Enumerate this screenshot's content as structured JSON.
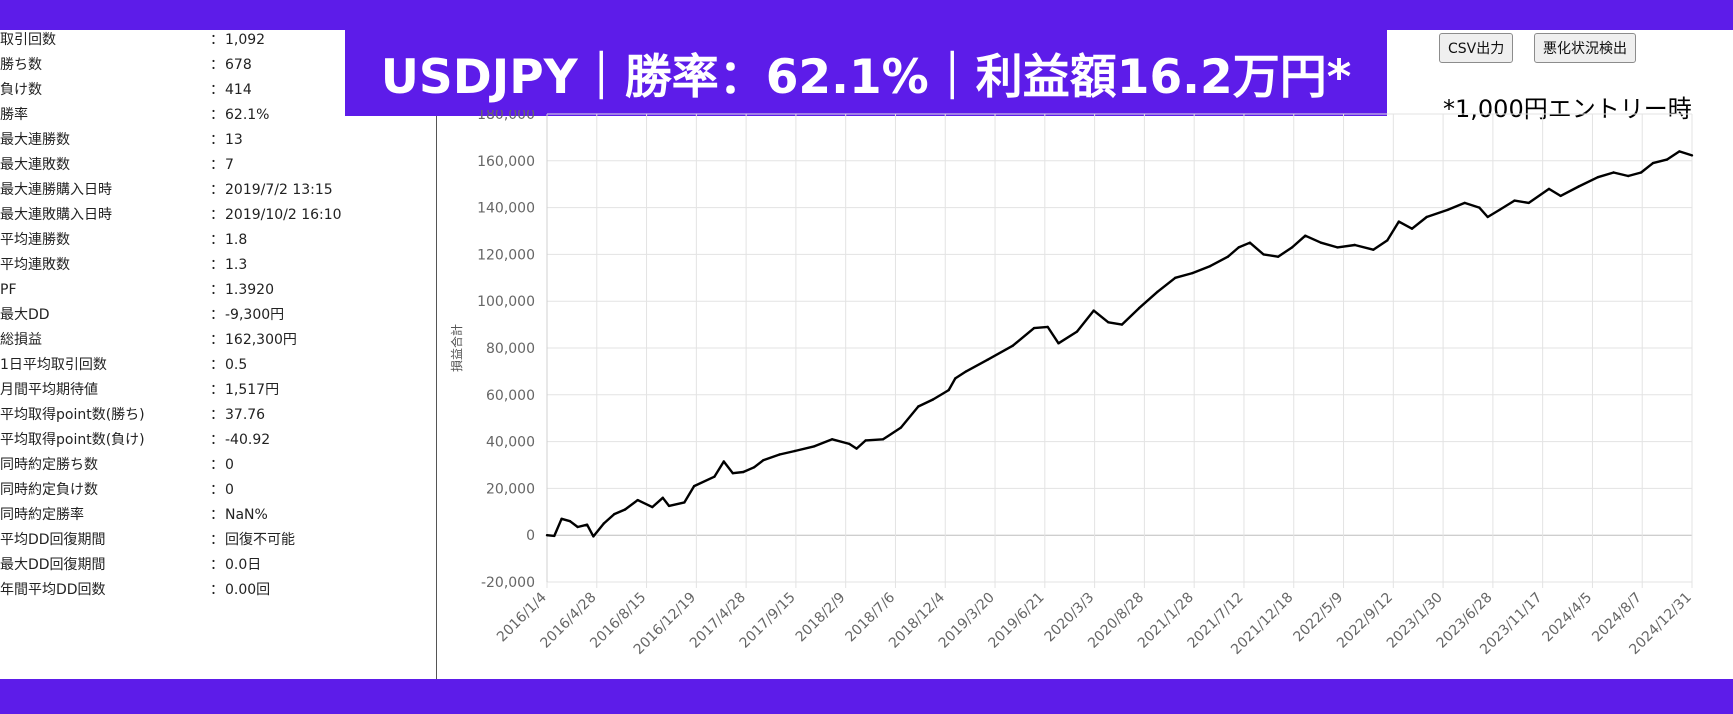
{
  "banner": {
    "title": "USDJPY｜勝率：62.1%｜利益額16.2万円*"
  },
  "note": "*1,000円エントリー時",
  "buttons": {
    "csv": "CSV出力",
    "deterioration": "悪化状況検出"
  },
  "stats": [
    {
      "label": "取引回数",
      "value": "1,092"
    },
    {
      "label": "勝ち数",
      "value": "678"
    },
    {
      "label": "負け数",
      "value": "414"
    },
    {
      "label": "勝率",
      "value": "62.1%"
    },
    {
      "label": "最大連勝数",
      "value": "13"
    },
    {
      "label": "最大連敗数",
      "value": "7"
    },
    {
      "label": "最大連勝購入日時",
      "value": "2019/7/2 13:15"
    },
    {
      "label": "最大連敗購入日時",
      "value": "2019/10/2 16:10"
    },
    {
      "label": "平均連勝数",
      "value": "1.8"
    },
    {
      "label": "平均連敗数",
      "value": "1.3"
    },
    {
      "label": "PF",
      "value": "1.3920"
    },
    {
      "label": "最大DD",
      "value": "-9,300円"
    },
    {
      "label": "総損益",
      "value": "162,300円"
    },
    {
      "label": "1日平均取引回数",
      "value": "0.5"
    },
    {
      "label": "月間平均期待値",
      "value": "1,517円"
    },
    {
      "label": "平均取得point数(勝ち)",
      "value": "37.76"
    },
    {
      "label": "平均取得point数(負け)",
      "value": "-40.92"
    },
    {
      "label": "同時約定勝ち数",
      "value": "0"
    },
    {
      "label": "同時約定負け数",
      "value": "0"
    },
    {
      "label": "同時約定勝率",
      "value": "NaN%"
    },
    {
      "label": "平均DD回復期間",
      "value": "回復不可能"
    },
    {
      "label": "最大DD回復期間",
      "value": "0.0日"
    },
    {
      "label": "年間平均DD回数",
      "value": "0.00回"
    }
  ],
  "colors": {
    "banner": "#5d1ce9",
    "line": "#000000",
    "grid": "#e3e3e3"
  },
  "chart_data": {
    "type": "line",
    "ylabel": "損益合計",
    "xlabel": "",
    "ylim": [
      -20000,
      180000
    ],
    "yticks": [
      -20000,
      0,
      20000,
      40000,
      60000,
      80000,
      100000,
      120000,
      140000,
      160000,
      180000
    ],
    "ytick_labels": [
      "-20,000",
      "0",
      "20,000",
      "40,000",
      "60,000",
      "80,000",
      "100,000",
      "120,000",
      "140,000",
      "160,000",
      "180,000"
    ],
    "x_range": [
      "2016/1/4",
      "2024/12/31"
    ],
    "xtick_labels": [
      "2016/1/4",
      "2016/4/28",
      "2016/8/15",
      "2016/12/19",
      "2017/4/28",
      "2017/9/15",
      "2018/2/9",
      "2018/7/6",
      "2018/12/4",
      "2019/3/20",
      "2019/6/21",
      "2020/3/3",
      "2020/8/28",
      "2021/1/28",
      "2021/7/12",
      "2021/12/18",
      "2022/5/9",
      "2022/9/12",
      "2023/1/30",
      "2023/6/28",
      "2023/11/17",
      "2024/4/5",
      "2024/8/7",
      "2024/12/31"
    ],
    "grid": true,
    "series": [
      {
        "values": [
          {
            "x": "2016/1/4",
            "y": 0
          },
          {
            "x": "2016/1/25",
            "y": -300
          },
          {
            "x": "2016/2/15",
            "y": 7000
          },
          {
            "x": "2016/3/10",
            "y": 6000
          },
          {
            "x": "2016/4/1",
            "y": 3500
          },
          {
            "x": "2016/4/28",
            "y": 4500
          },
          {
            "x": "2016/5/16",
            "y": -500
          },
          {
            "x": "2016/6/15",
            "y": 5000
          },
          {
            "x": "2016/7/15",
            "y": 9000
          },
          {
            "x": "2016/8/15",
            "y": 11000
          },
          {
            "x": "2016/9/20",
            "y": 15000
          },
          {
            "x": "2016/11/1",
            "y": 12000
          },
          {
            "x": "2016/12/1",
            "y": 16000
          },
          {
            "x": "2016/12/19",
            "y": 12500
          },
          {
            "x": "2017/2/1",
            "y": 14000
          },
          {
            "x": "2017/3/1",
            "y": 21000
          },
          {
            "x": "2017/4/28",
            "y": 25000
          },
          {
            "x": "2017/5/25",
            "y": 31500
          },
          {
            "x": "2017/6/20",
            "y": 26500
          },
          {
            "x": "2017/7/20",
            "y": 27000
          },
          {
            "x": "2017/8/20",
            "y": 29000
          },
          {
            "x": "2017/9/15",
            "y": 32000
          },
          {
            "x": "2017/11/1",
            "y": 34500
          },
          {
            "x": "2017/12/15",
            "y": 36000
          },
          {
            "x": "2018/2/9",
            "y": 38000
          },
          {
            "x": "2018/4/1",
            "y": 41000
          },
          {
            "x": "2018/5/20",
            "y": 39000
          },
          {
            "x": "2018/6/10",
            "y": 37000
          },
          {
            "x": "2018/7/6",
            "y": 40500
          },
          {
            "x": "2018/8/25",
            "y": 41000
          },
          {
            "x": "2018/10/15",
            "y": 46000
          },
          {
            "x": "2018/12/4",
            "y": 55000
          },
          {
            "x": "2019/1/15",
            "y": 58000
          },
          {
            "x": "2019/3/1",
            "y": 62000
          },
          {
            "x": "2019/3/20",
            "y": 67000
          },
          {
            "x": "2019/4/20",
            "y": 70000
          },
          {
            "x": "2019/6/21",
            "y": 75000
          },
          {
            "x": "2019/9/1",
            "y": 81000
          },
          {
            "x": "2019/11/1",
            "y": 88500
          },
          {
            "x": "2019/12/10",
            "y": 89000
          },
          {
            "x": "2020/1/10",
            "y": 82000
          },
          {
            "x": "2020/3/3",
            "y": 87000
          },
          {
            "x": "2020/4/20",
            "y": 96000
          },
          {
            "x": "2020/6/1",
            "y": 91000
          },
          {
            "x": "2020/7/10",
            "y": 90000
          },
          {
            "x": "2020/8/28",
            "y": 97000
          },
          {
            "x": "2020/10/20",
            "y": 104000
          },
          {
            "x": "2020/12/10",
            "y": 110000
          },
          {
            "x": "2021/1/28",
            "y": 112000
          },
          {
            "x": "2021/3/20",
            "y": 115000
          },
          {
            "x": "2021/5/10",
            "y": 119000
          },
          {
            "x": "2021/6/10",
            "y": 123000
          },
          {
            "x": "2021/7/12",
            "y": 125000
          },
          {
            "x": "2021/8/20",
            "y": 120000
          },
          {
            "x": "2021/10/1",
            "y": 119000
          },
          {
            "x": "2021/11/10",
            "y": 123000
          },
          {
            "x": "2021/12/18",
            "y": 128000
          },
          {
            "x": "2022/2/1",
            "y": 125000
          },
          {
            "x": "2022/3/20",
            "y": 123000
          },
          {
            "x": "2022/5/9",
            "y": 124000
          },
          {
            "x": "2022/7/1",
            "y": 122000
          },
          {
            "x": "2022/8/10",
            "y": 126000
          },
          {
            "x": "2022/9/12",
            "y": 134000
          },
          {
            "x": "2022/10/20",
            "y": 131000
          },
          {
            "x": "2022/12/1",
            "y": 136000
          },
          {
            "x": "2023/1/30",
            "y": 139000
          },
          {
            "x": "2023/3/20",
            "y": 142000
          },
          {
            "x": "2023/5/1",
            "y": 140000
          },
          {
            "x": "2023/5/25",
            "y": 136000
          },
          {
            "x": "2023/6/28",
            "y": 139000
          },
          {
            "x": "2023/8/10",
            "y": 143000
          },
          {
            "x": "2023/9/20",
            "y": 142000
          },
          {
            "x": "2023/11/17",
            "y": 148000
          },
          {
            "x": "2023/12/20",
            "y": 145000
          },
          {
            "x": "2024/2/10",
            "y": 149000
          },
          {
            "x": "2024/4/5",
            "y": 153000
          },
          {
            "x": "2024/5/20",
            "y": 155000
          },
          {
            "x": "2024/7/1",
            "y": 153500
          },
          {
            "x": "2024/8/7",
            "y": 155000
          },
          {
            "x": "2024/9/10",
            "y": 159000
          },
          {
            "x": "2024/10/20",
            "y": 160500
          },
          {
            "x": "2024/11/25",
            "y": 164000
          },
          {
            "x": "2024/12/31",
            "y": 162300
          }
        ]
      }
    ]
  }
}
